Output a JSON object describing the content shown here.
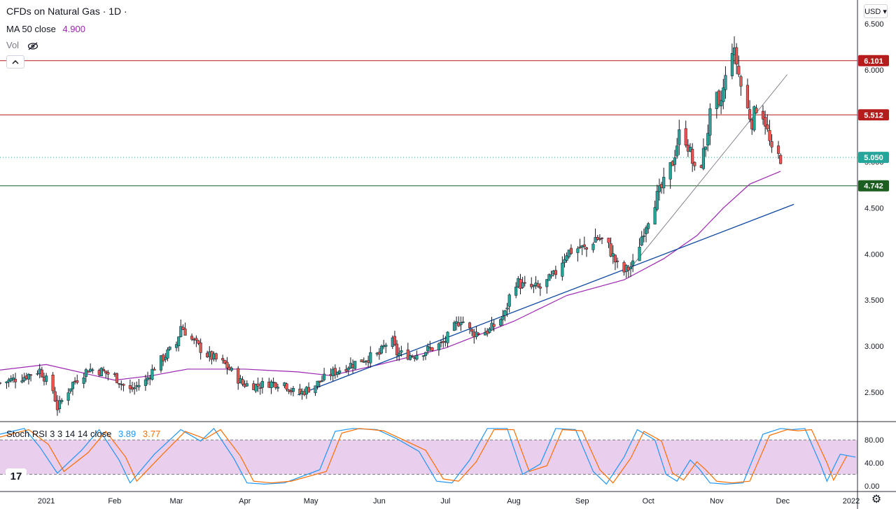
{
  "header": {
    "symbol_title": "CFDs on Natural Gas · 1D ·",
    "ma_label": "MA 50 close",
    "ma_value": "4.900",
    "vol_label": "Vol",
    "vol_visibility_icon": "eye-crossed-icon",
    "collapse_icon": "chevron-up-icon"
  },
  "currency_button": "USD ▾",
  "indicator": {
    "label": "Stoch RSI 3 3 14 14 close",
    "k_value": "3.89",
    "d_value": "3.77",
    "k_color": "#2196f3",
    "d_color": "#ff6d00"
  },
  "logo_text": "17",
  "settings_icon": "gear-icon",
  "colors": {
    "up": "#26a69a",
    "down": "#ef5350",
    "ma": "#9c27b0",
    "trend_main": "#0d47a1",
    "trend_thin": "#787b86",
    "resistance": "#b71c1c",
    "support": "#1b5e20",
    "last_price": "#26a69a",
    "stoch_band": "#e1bee7"
  },
  "chart_data": [
    {
      "type": "candlestick",
      "title": "CFDs on Natural Gas · 1D",
      "interval": "1D",
      "currency": "USD",
      "x_range": [
        "2020-12-11",
        "2022-01-01"
      ],
      "ylim": [
        2.18,
        6.76
      ],
      "y_ticks": [
        2.5,
        3.0,
        3.5,
        4.0,
        4.5,
        5.0,
        5.5,
        6.0,
        6.5
      ],
      "y_tick_labels": [
        "2.500",
        "3.000",
        "3.500",
        "4.000",
        "4.500",
        "5.000",
        "5.500",
        "6.000",
        "6.500"
      ],
      "x_tick_labels": [
        {
          "date": "2021-01-01",
          "label": "2021"
        },
        {
          "date": "2021-02-01",
          "label": "Feb"
        },
        {
          "date": "2021-03-01",
          "label": "Mar"
        },
        {
          "date": "2021-04-01",
          "label": "Apr"
        },
        {
          "date": "2021-05-01",
          "label": "May"
        },
        {
          "date": "2021-06-01",
          "label": "Jun"
        },
        {
          "date": "2021-07-01",
          "label": "Jul"
        },
        {
          "date": "2021-08-01",
          "label": "Aug"
        },
        {
          "date": "2021-09-01",
          "label": "Sep"
        },
        {
          "date": "2021-10-01",
          "label": "Oct"
        },
        {
          "date": "2021-11-01",
          "label": "Nov"
        },
        {
          "date": "2021-12-01",
          "label": "Dec"
        },
        {
          "date": "2022-01-01",
          "label": "2022"
        }
      ],
      "price_path": [
        [
          "2020-12-11",
          2.6
        ],
        [
          "2020-12-22",
          2.67
        ],
        [
          "2020-12-29",
          2.74
        ],
        [
          "2021-01-04",
          2.52
        ],
        [
          "2021-01-06",
          2.33
        ],
        [
          "2021-01-13",
          2.6
        ],
        [
          "2021-01-20",
          2.75
        ],
        [
          "2021-01-26",
          2.73
        ],
        [
          "2021-02-01",
          2.67
        ],
        [
          "2021-02-05",
          2.57
        ],
        [
          "2021-02-08",
          2.52
        ],
        [
          "2021-02-12",
          2.58
        ],
        [
          "2021-02-15",
          2.62
        ],
        [
          "2021-02-19",
          2.77
        ],
        [
          "2021-02-24",
          2.9
        ],
        [
          "2021-03-01",
          3.02
        ],
        [
          "2021-03-03",
          3.22
        ],
        [
          "2021-03-08",
          3.07
        ],
        [
          "2021-03-14",
          2.92
        ],
        [
          "2021-03-17",
          2.88
        ],
        [
          "2021-03-23",
          2.8
        ],
        [
          "2021-03-31",
          2.59
        ],
        [
          "2021-04-07",
          2.57
        ],
        [
          "2021-04-12",
          2.6
        ],
        [
          "2021-04-19",
          2.6
        ],
        [
          "2021-04-22",
          2.52
        ],
        [
          "2021-04-25",
          2.47
        ],
        [
          "2021-05-03",
          2.58
        ],
        [
          "2021-05-10",
          2.7
        ],
        [
          "2021-05-17",
          2.78
        ],
        [
          "2021-05-25",
          2.86
        ],
        [
          "2021-06-01",
          2.91
        ],
        [
          "2021-06-06",
          3.1
        ],
        [
          "2021-06-09",
          2.92
        ],
        [
          "2021-06-16",
          2.9
        ],
        [
          "2021-06-23",
          2.96
        ],
        [
          "2021-06-30",
          3.03
        ],
        [
          "2021-07-05",
          3.2
        ],
        [
          "2021-07-08",
          3.3
        ],
        [
          "2021-07-13",
          3.14
        ],
        [
          "2021-07-21",
          3.17
        ],
        [
          "2021-07-28",
          3.35
        ],
        [
          "2021-08-01",
          3.72
        ],
        [
          "2021-08-06",
          3.64
        ],
        [
          "2021-08-13",
          3.63
        ],
        [
          "2021-08-19",
          3.76
        ],
        [
          "2021-08-25",
          4.02
        ],
        [
          "2021-08-31",
          4.07
        ],
        [
          "2021-09-03",
          4.05
        ],
        [
          "2021-09-07",
          4.18
        ],
        [
          "2021-09-12",
          4.13
        ],
        [
          "2021-09-17",
          3.87
        ],
        [
          "2021-09-20",
          3.81
        ],
        [
          "2021-09-24",
          3.88
        ],
        [
          "2021-09-29",
          4.27
        ],
        [
          "2021-10-04",
          4.58
        ],
        [
          "2021-10-08",
          4.76
        ],
        [
          "2021-10-12",
          5.0
        ],
        [
          "2021-10-16",
          5.4
        ],
        [
          "2021-10-20",
          5.1
        ],
        [
          "2021-10-23",
          4.79
        ],
        [
          "2021-10-27",
          5.2
        ],
        [
          "2021-10-31",
          5.8
        ],
        [
          "2021-11-02",
          5.55
        ],
        [
          "2021-11-05",
          5.9
        ],
        [
          "2021-11-08",
          6.25
        ],
        [
          "2021-11-10",
          6.08
        ],
        [
          "2021-11-13",
          5.7
        ],
        [
          "2021-11-17",
          5.44
        ],
        [
          "2021-11-20",
          5.68
        ],
        [
          "2021-11-23",
          5.44
        ],
        [
          "2021-11-26",
          5.09
        ],
        [
          "2021-11-30",
          5.05
        ]
      ],
      "moving_average": {
        "name": "MA 50 close",
        "points": [
          [
            "2020-12-11",
            2.74
          ],
          [
            "2021-01-01",
            2.8
          ],
          [
            "2021-02-01",
            2.63
          ],
          [
            "2021-02-18",
            2.68
          ],
          [
            "2021-03-06",
            2.75
          ],
          [
            "2021-04-01",
            2.75
          ],
          [
            "2021-04-25",
            2.72
          ],
          [
            "2021-05-10",
            2.68
          ],
          [
            "2021-06-01",
            2.8
          ],
          [
            "2021-07-01",
            2.98
          ],
          [
            "2021-08-01",
            3.27
          ],
          [
            "2021-08-25",
            3.55
          ],
          [
            "2021-09-20",
            3.72
          ],
          [
            "2021-10-08",
            3.95
          ],
          [
            "2021-10-23",
            4.2
          ],
          [
            "2021-11-04",
            4.5
          ],
          [
            "2021-11-16",
            4.76
          ],
          [
            "2021-11-30",
            4.9
          ]
        ]
      },
      "trend_lines": [
        {
          "id": "main",
          "from": [
            "2021-04-25",
            2.47
          ],
          "to": [
            "2021-12-06",
            4.54
          ]
        },
        {
          "id": "thin",
          "from": [
            "2021-09-24",
            3.88
          ],
          "to": [
            "2021-12-03",
            5.95
          ]
        }
      ],
      "horizontal_levels": [
        {
          "id": "resistance-1",
          "value": 6.101,
          "label": "6.101"
        },
        {
          "id": "resistance-2",
          "value": 5.512,
          "label": "5.512"
        },
        {
          "id": "last-price",
          "value": 5.05,
          "label": "5.050",
          "style": "dotted"
        },
        {
          "id": "support",
          "value": 4.742,
          "label": "4.742"
        }
      ]
    },
    {
      "type": "line",
      "title": "Stoch RSI 3 3 14 14 close",
      "ylim": [
        -10,
        112
      ],
      "y_tick_labels": [
        "80.00",
        "40.00",
        "0.00"
      ],
      "y_ticks": [
        80,
        40,
        0
      ],
      "band": [
        20,
        80
      ],
      "series": [
        {
          "name": "K",
          "points": [
            [
              "2020-12-11",
              90
            ],
            [
              "2020-12-22",
              100
            ],
            [
              "2020-12-29",
              68
            ],
            [
              "2021-01-06",
              22
            ],
            [
              "2021-01-17",
              62
            ],
            [
              "2021-01-25",
              98
            ],
            [
              "2021-02-03",
              45
            ],
            [
              "2021-02-08",
              5
            ],
            [
              "2021-02-19",
              55
            ],
            [
              "2021-03-03",
              98
            ],
            [
              "2021-03-12",
              78
            ],
            [
              "2021-03-18",
              100
            ],
            [
              "2021-03-27",
              48
            ],
            [
              "2021-04-02",
              5
            ],
            [
              "2021-04-10",
              3
            ],
            [
              "2021-04-19",
              5
            ],
            [
              "2021-05-05",
              28
            ],
            [
              "2021-05-12",
              95
            ],
            [
              "2021-05-20",
              100
            ],
            [
              "2021-05-31",
              98
            ],
            [
              "2021-06-09",
              82
            ],
            [
              "2021-06-19",
              60
            ],
            [
              "2021-06-27",
              8
            ],
            [
              "2021-07-04",
              5
            ],
            [
              "2021-07-12",
              45
            ],
            [
              "2021-07-20",
              100
            ],
            [
              "2021-07-29",
              100
            ],
            [
              "2021-08-05",
              20
            ],
            [
              "2021-08-13",
              38
            ],
            [
              "2021-08-20",
              100
            ],
            [
              "2021-08-29",
              98
            ],
            [
              "2021-09-06",
              25
            ],
            [
              "2021-09-12",
              3
            ],
            [
              "2021-09-20",
              50
            ],
            [
              "2021-09-26",
              98
            ],
            [
              "2021-10-04",
              80
            ],
            [
              "2021-10-09",
              20
            ],
            [
              "2021-10-14",
              8
            ],
            [
              "2021-10-20",
              45
            ],
            [
              "2021-10-24",
              30
            ],
            [
              "2021-10-29",
              5
            ],
            [
              "2021-11-05",
              3
            ],
            [
              "2021-11-13",
              5
            ],
            [
              "2021-11-22",
              90
            ],
            [
              "2021-11-30",
              100
            ],
            [
              "2021-12-05",
              98
            ],
            [
              "2021-12-11",
              100
            ],
            [
              "2021-12-18",
              38
            ],
            [
              "2021-12-21",
              8
            ],
            [
              "2021-12-27",
              55
            ],
            [
              "2022-01-03",
              50
            ],
            [
              "2022-01-06",
              18
            ],
            [
              "2022-01-09",
              22
            ],
            [
              "2022-01-14",
              5
            ],
            [
              "2022-01-22",
              10
            ],
            [
              "2022-01-27",
              3.89
            ]
          ]
        },
        {
          "name": "D",
          "points": [
            [
              "2020-12-11",
              85
            ],
            [
              "2020-12-24",
              98
            ],
            [
              "2021-01-02",
              72
            ],
            [
              "2021-01-09",
              25
            ],
            [
              "2021-01-20",
              58
            ],
            [
              "2021-01-28",
              95
            ],
            [
              "2021-02-06",
              50
            ],
            [
              "2021-02-11",
              8
            ],
            [
              "2021-02-22",
              52
            ],
            [
              "2021-03-05",
              95
            ],
            [
              "2021-03-14",
              82
            ],
            [
              "2021-03-21",
              98
            ],
            [
              "2021-03-30",
              52
            ],
            [
              "2021-04-05",
              8
            ],
            [
              "2021-04-13",
              5
            ],
            [
              "2021-04-22",
              8
            ],
            [
              "2021-05-08",
              25
            ],
            [
              "2021-05-15",
              92
            ],
            [
              "2021-05-23",
              100
            ],
            [
              "2021-06-03",
              96
            ],
            [
              "2021-06-12",
              80
            ],
            [
              "2021-06-22",
              62
            ],
            [
              "2021-06-30",
              12
            ],
            [
              "2021-07-07",
              8
            ],
            [
              "2021-07-15",
              42
            ],
            [
              "2021-07-23",
              98
            ],
            [
              "2021-08-01",
              98
            ],
            [
              "2021-08-08",
              25
            ],
            [
              "2021-08-16",
              35
            ],
            [
              "2021-08-23",
              98
            ],
            [
              "2021-09-01",
              96
            ],
            [
              "2021-09-09",
              28
            ],
            [
              "2021-09-15",
              5
            ],
            [
              "2021-09-23",
              48
            ],
            [
              "2021-09-29",
              95
            ],
            [
              "2021-10-07",
              78
            ],
            [
              "2021-10-12",
              22
            ],
            [
              "2021-10-17",
              10
            ],
            [
              "2021-10-23",
              42
            ],
            [
              "2021-10-27",
              28
            ],
            [
              "2021-11-01",
              8
            ],
            [
              "2021-11-08",
              5
            ],
            [
              "2021-11-16",
              8
            ],
            [
              "2021-11-25",
              88
            ],
            [
              "2021-12-03",
              98
            ],
            [
              "2021-12-08",
              96
            ],
            [
              "2021-12-14",
              98
            ],
            [
              "2021-12-21",
              40
            ],
            [
              "2021-12-24",
              10
            ],
            [
              "2021-12-30",
              52
            ],
            [
              "2022-01-06",
              48
            ],
            [
              "2022-01-09",
              20
            ],
            [
              "2022-01-12",
              20
            ],
            [
              "2022-01-17",
              8
            ],
            [
              "2022-01-25",
              8
            ],
            [
              "2022-01-30",
              3.77
            ]
          ]
        }
      ]
    }
  ]
}
